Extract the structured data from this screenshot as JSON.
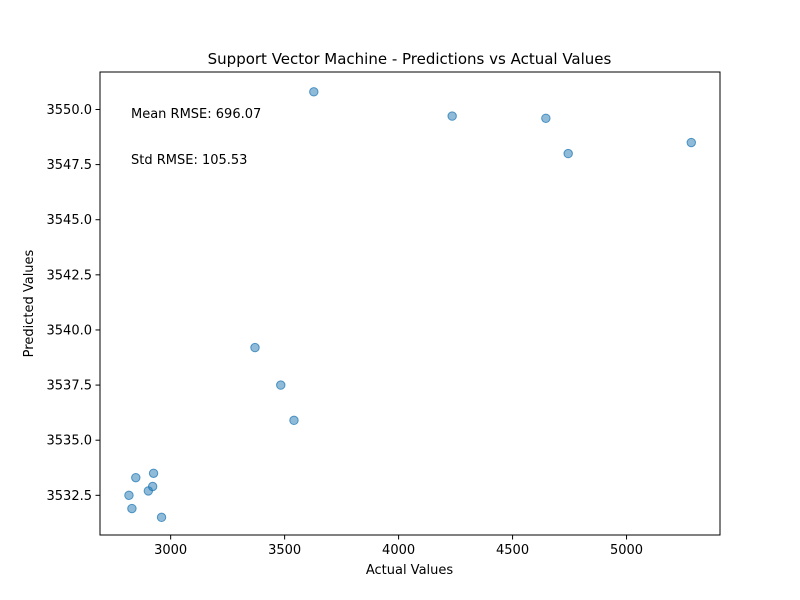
{
  "chart_data": {
    "type": "scatter",
    "title": "Support Vector Machine - Predictions vs Actual Values",
    "xlabel": "Actual Values",
    "ylabel": "Predicted Values",
    "xlim": [
      2690,
      5410
    ],
    "ylim": [
      3530.7,
      3551.7
    ],
    "xticks": [
      3000,
      3500,
      4000,
      4500,
      5000
    ],
    "xtick_labels": [
      "3000",
      "3500",
      "4000",
      "4500",
      "5000"
    ],
    "yticks": [
      3532.5,
      3535.0,
      3537.5,
      3540.0,
      3542.5,
      3545.0,
      3547.5,
      3550.0
    ],
    "ytick_labels": [
      "3532.5",
      "3535.0",
      "3537.5",
      "3540.0",
      "3542.5",
      "3545.0",
      "3547.5",
      "3550.0"
    ],
    "grid": false,
    "point_color": "#1f77b4",
    "point_alpha": 0.5,
    "points": [
      {
        "x": 3628,
        "y": 3550.8
      },
      {
        "x": 4235,
        "y": 3549.7
      },
      {
        "x": 4646,
        "y": 3549.6
      },
      {
        "x": 5284,
        "y": 3548.5
      },
      {
        "x": 4744,
        "y": 3548.0
      },
      {
        "x": 3370,
        "y": 3539.2
      },
      {
        "x": 3483,
        "y": 3537.5
      },
      {
        "x": 3541,
        "y": 3535.9
      },
      {
        "x": 2925,
        "y": 3533.5
      },
      {
        "x": 2847,
        "y": 3533.3
      },
      {
        "x": 2921,
        "y": 3532.9
      },
      {
        "x": 2902,
        "y": 3532.7
      },
      {
        "x": 2817,
        "y": 3532.5
      },
      {
        "x": 2830,
        "y": 3531.9
      },
      {
        "x": 2960,
        "y": 3531.5
      }
    ],
    "annotations": [
      {
        "text": "Mean RMSE: 696.07"
      },
      {
        "text": "Std RMSE: 105.53"
      }
    ]
  }
}
